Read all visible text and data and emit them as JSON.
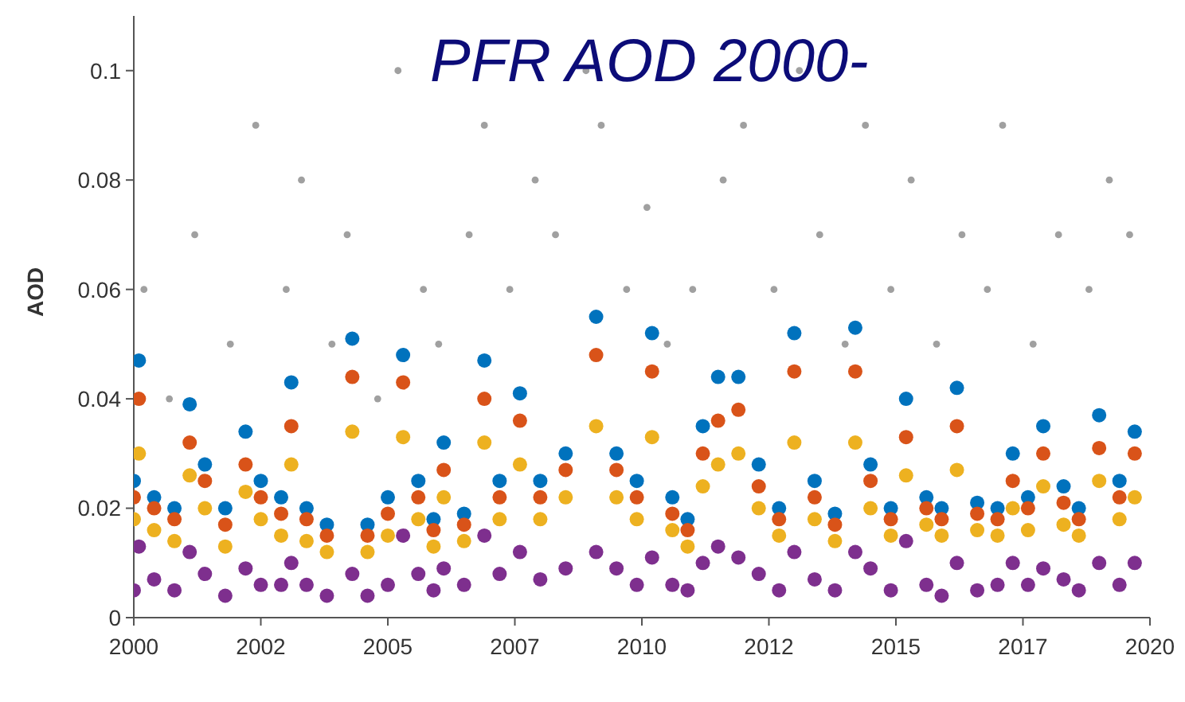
{
  "chart_data": {
    "type": "scatter",
    "title": "PFR AOD 2000-",
    "ylabel": "AOD",
    "marker": "circle",
    "xlim": [
      2000,
      2020
    ],
    "ylim": [
      0,
      0.11
    ],
    "xticks": [
      2000,
      {
        "value": 2002.5,
        "label": "2002"
      },
      2005,
      {
        "value": 2007.5,
        "label": "2007"
      },
      2010,
      {
        "value": 2012.5,
        "label": "2012"
      },
      2015,
      {
        "value": 2017.5,
        "label": "2017"
      },
      2020
    ],
    "yticks": [
      0,
      0.02,
      0.04,
      0.06,
      0.08,
      0.1
    ],
    "x": [
      2000.0,
      2000.1,
      2000.4,
      2000.8,
      2001.1,
      2001.4,
      2001.8,
      2002.2,
      2002.5,
      2002.9,
      2003.1,
      2003.4,
      2003.8,
      2004.3,
      2004.6,
      2005.0,
      2005.3,
      2005.6,
      2005.9,
      2006.1,
      2006.5,
      2006.9,
      2007.2,
      2007.6,
      2008.0,
      2008.5,
      2009.1,
      2009.5,
      2009.9,
      2010.2,
      2010.6,
      2010.9,
      2011.2,
      2011.5,
      2011.9,
      2012.3,
      2012.7,
      2013.0,
      2013.4,
      2013.8,
      2014.2,
      2014.5,
      2014.9,
      2015.2,
      2015.6,
      2015.9,
      2016.2,
      2016.6,
      2017.0,
      2017.3,
      2017.6,
      2017.9,
      2018.3,
      2018.6,
      2019.0,
      2019.4,
      2019.7
    ],
    "series": [
      {
        "color": "#a0a0a0",
        "x": [
          2000.2,
          2000.7,
          2001.2,
          2001.9,
          2002.4,
          2003.0,
          2003.3,
          2003.9,
          2004.2,
          2004.8,
          2005.2,
          2005.7,
          2006.0,
          2006.6,
          2006.9,
          2007.4,
          2007.9,
          2008.3,
          2008.9,
          2009.2,
          2009.7,
          2010.1,
          2010.5,
          2011.0,
          2011.6,
          2012.0,
          2012.6,
          2013.1,
          2013.5,
          2014.0,
          2014.4,
          2014.9,
          2015.3,
          2015.8,
          2016.3,
          2016.8,
          2017.1,
          2017.7,
          2018.2,
          2018.8,
          2019.2,
          2019.6
        ],
        "values": [
          0.06,
          0.04,
          0.07,
          0.05,
          0.09,
          0.06,
          0.08,
          0.05,
          0.07,
          0.04,
          0.1,
          0.06,
          0.05,
          0.07,
          0.09,
          0.06,
          0.08,
          0.07,
          0.1,
          0.09,
          0.06,
          0.075,
          0.05,
          0.06,
          0.08,
          0.09,
          0.06,
          0.1,
          0.07,
          0.05,
          0.09,
          0.06,
          0.08,
          0.05,
          0.07,
          0.06,
          0.09,
          0.05,
          0.07,
          0.06,
          0.08,
          0.07
        ]
      },
      {
        "color": "#0072bd",
        "values": [
          0.025,
          0.047,
          0.022,
          0.02,
          0.039,
          0.028,
          0.02,
          0.034,
          0.025,
          0.022,
          0.043,
          0.02,
          0.017,
          0.051,
          0.017,
          0.022,
          0.048,
          0.025,
          0.018,
          0.032,
          0.019,
          0.047,
          0.025,
          0.041,
          0.025,
          0.03,
          0.055,
          0.03,
          0.025,
          0.052,
          0.022,
          0.018,
          0.035,
          0.044,
          0.044,
          0.028,
          0.02,
          0.052,
          0.025,
          0.019,
          0.053,
          0.028,
          0.02,
          0.04,
          0.022,
          0.02,
          0.042,
          0.021,
          0.02,
          0.03,
          0.022,
          0.035,
          0.024,
          0.02,
          0.037,
          0.025,
          0.034
        ]
      },
      {
        "color": "#d95319",
        "values": [
          0.022,
          0.04,
          0.02,
          0.018,
          0.032,
          0.025,
          0.017,
          0.028,
          0.022,
          0.019,
          0.035,
          0.018,
          0.015,
          0.044,
          0.015,
          0.019,
          0.043,
          0.022,
          0.016,
          0.027,
          0.017,
          0.04,
          0.022,
          0.036,
          0.022,
          0.027,
          0.048,
          0.027,
          0.022,
          0.045,
          0.019,
          0.016,
          0.03,
          0.036,
          0.038,
          0.024,
          0.018,
          0.045,
          0.022,
          0.017,
          0.045,
          0.025,
          0.018,
          0.033,
          0.02,
          0.018,
          0.035,
          0.019,
          0.018,
          0.025,
          0.02,
          0.03,
          0.021,
          0.018,
          0.031,
          0.022,
          0.03
        ]
      },
      {
        "color": "#edb120",
        "values": [
          0.018,
          0.03,
          0.016,
          0.014,
          0.026,
          0.02,
          0.013,
          0.023,
          0.018,
          0.015,
          0.028,
          0.014,
          0.012,
          0.034,
          0.012,
          0.015,
          0.033,
          0.018,
          0.013,
          0.022,
          0.014,
          0.032,
          0.018,
          0.028,
          0.018,
          0.022,
          0.035,
          0.022,
          0.018,
          0.033,
          0.016,
          0.013,
          0.024,
          0.028,
          0.03,
          0.02,
          0.015,
          0.032,
          0.018,
          0.014,
          0.032,
          0.02,
          0.015,
          0.026,
          0.017,
          0.015,
          0.027,
          0.016,
          0.015,
          0.02,
          0.016,
          0.024,
          0.017,
          0.015,
          0.025,
          0.018,
          0.022
        ]
      },
      {
        "color": "#7e2f8e",
        "values": [
          0.005,
          0.013,
          0.007,
          0.005,
          0.012,
          0.008,
          0.004,
          0.009,
          0.006,
          0.006,
          0.01,
          0.006,
          0.004,
          0.008,
          0.004,
          0.006,
          0.015,
          0.008,
          0.005,
          0.009,
          0.006,
          0.015,
          0.008,
          0.012,
          0.007,
          0.009,
          0.012,
          0.009,
          0.006,
          0.011,
          0.006,
          0.005,
          0.01,
          0.013,
          0.011,
          0.008,
          0.005,
          0.012,
          0.007,
          0.005,
          0.012,
          0.009,
          0.005,
          0.014,
          0.006,
          0.004,
          0.01,
          0.005,
          0.006,
          0.01,
          0.006,
          0.009,
          0.007,
          0.005,
          0.01,
          0.006,
          0.01
        ]
      }
    ]
  }
}
